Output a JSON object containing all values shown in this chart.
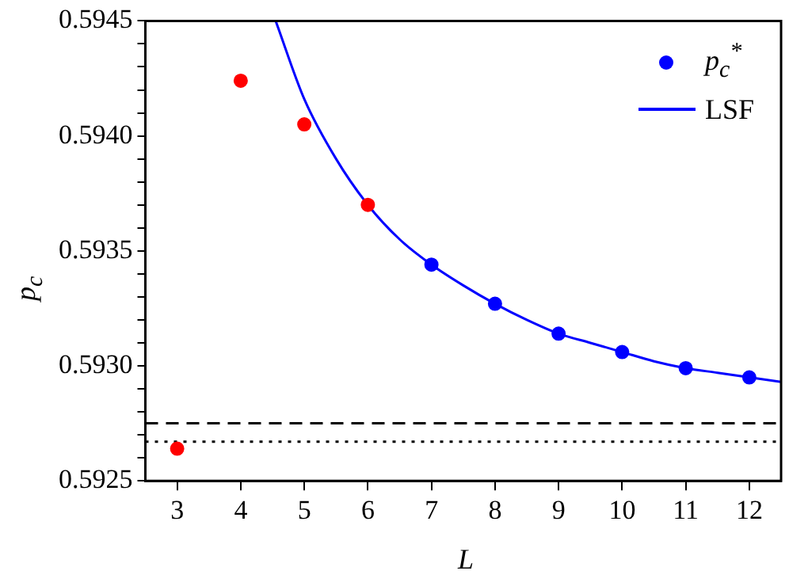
{
  "chart_data": {
    "type": "scatter",
    "xlabel": "L",
    "ylabel": "p$_{c}$",
    "xlim": [
      2.5,
      12.5
    ],
    "xticks": [
      3,
      4,
      5,
      6,
      7,
      8,
      9,
      10,
      11,
      12
    ],
    "ylim": [
      0.5925,
      0.5945
    ],
    "yticks": [
      0.5925,
      {
        "value": 0.5926,
        "label": null
      },
      {
        "value": 0.5927,
        "label": null
      },
      {
        "value": 0.5928,
        "label": null
      },
      {
        "value": 0.5929,
        "label": null
      },
      {
        "value": 0.593,
        "label": "0.5930"
      },
      {
        "value": 0.5931,
        "label": null
      },
      {
        "value": 0.5932,
        "label": null
      },
      {
        "value": 0.5933,
        "label": null
      },
      {
        "value": 0.5934,
        "label": null
      },
      0.5935,
      {
        "value": 0.5936,
        "label": null
      },
      {
        "value": 0.5937,
        "label": null
      },
      {
        "value": 0.5938,
        "label": null
      },
      {
        "value": 0.5939,
        "label": null
      },
      {
        "value": 0.594,
        "label": "0.5940"
      },
      {
        "value": 0.5941,
        "label": null
      },
      {
        "value": 0.5942,
        "label": null
      },
      {
        "value": 0.5943,
        "label": null
      },
      {
        "value": 0.5944,
        "label": null
      },
      0.5945
    ],
    "grid": false,
    "legend": "top right",
    "marker": "circle",
    "series": [
      {
        "color": "#ff0000",
        "x": [
          3,
          4,
          5,
          6
        ],
        "values": [
          0.59264,
          0.59424,
          0.59405,
          0.5937
        ]
      },
      {
        "name": "p$_{c}$$^{*}$",
        "color": "#0000ff",
        "x": [
          7,
          8,
          9,
          10,
          11,
          12
        ],
        "values": [
          0.59344,
          0.59327,
          0.59314,
          0.59306,
          0.59299,
          0.59295
        ]
      },
      {
        "type": "line",
        "name": "LSF",
        "color": "#0000ff",
        "marker": "none",
        "x": [
          4.55,
          5,
          5.5,
          6,
          6.5,
          7,
          7.5,
          8,
          8.5,
          9,
          9.5,
          10,
          10.5,
          11,
          11.5,
          12,
          12.5
        ],
        "values": [
          0.5945,
          0.59416,
          0.5939,
          0.5937,
          0.59355,
          0.59344,
          0.59335,
          0.59327,
          0.5932,
          0.59314,
          0.5931,
          0.59306,
          0.59302,
          0.59299,
          0.59297,
          0.59295,
          0.59293
        ]
      }
    ],
    "ref_lines": [
      {
        "axis": "y",
        "value": 0.59275,
        "color": "#000000",
        "line_style": "dashed"
      },
      {
        "axis": "y",
        "value": 0.59267,
        "color": "#000000",
        "line_style": "dotted"
      }
    ]
  }
}
